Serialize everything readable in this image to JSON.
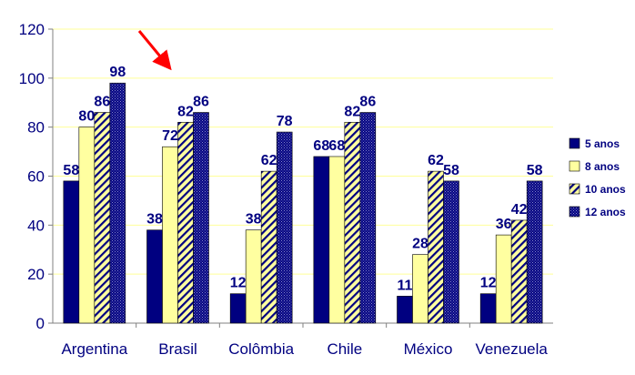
{
  "chart_data": {
    "type": "bar",
    "categories": [
      "Argentina",
      "Brasil",
      "Colômbia",
      "Chile",
      "México",
      "Venezuela"
    ],
    "series": [
      {
        "name": "5 anos",
        "values": [
          58,
          38,
          12,
          68,
          11,
          12
        ],
        "color": "#000080",
        "pattern": "solid"
      },
      {
        "name": "8 anos",
        "values": [
          80,
          72,
          38,
          68,
          28,
          36
        ],
        "color": "#FFFFA0",
        "pattern": "solid"
      },
      {
        "name": "10 anos",
        "values": [
          86,
          82,
          62,
          82,
          62,
          42
        ],
        "color": "#FFFFA0",
        "pattern": "diagonal-stripes"
      },
      {
        "name": "12 anos",
        "values": [
          98,
          86,
          78,
          86,
          58,
          58
        ],
        "color": "#000080",
        "pattern": "dotted"
      }
    ],
    "ylim": [
      0,
      120
    ],
    "yticks": [
      0,
      20,
      40,
      60,
      80,
      100,
      120
    ],
    "grid": true,
    "grid_color": "#FFFF99",
    "legend_position": "right",
    "annotation": "red-arrow-pointing-to-brasil"
  }
}
